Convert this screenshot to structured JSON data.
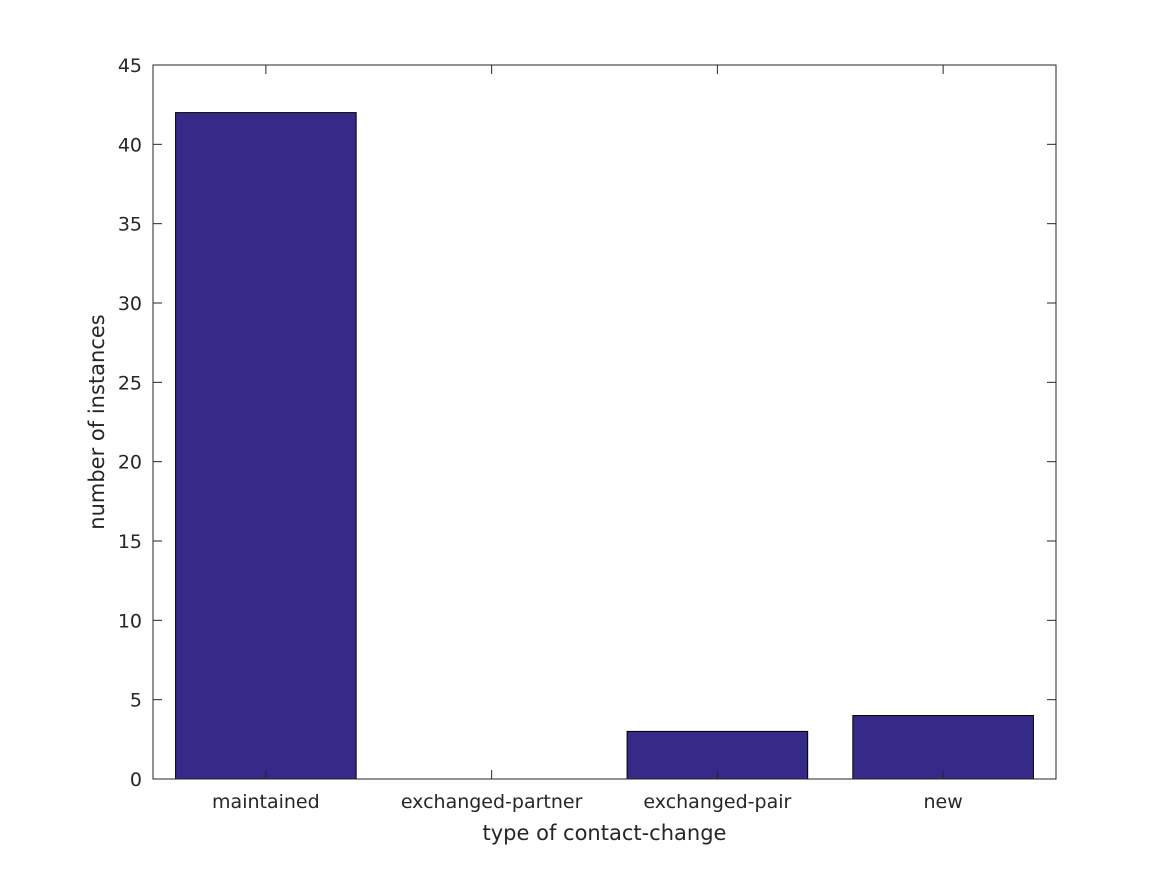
{
  "chart_data": {
    "type": "bar",
    "title": "",
    "xlabel": "type of contact-change",
    "ylabel": "number of instances",
    "categories": [
      "maintained",
      "exchanged-partner",
      "exchanged-pair",
      "new"
    ],
    "values": [
      42,
      0,
      3,
      4
    ],
    "ylim": [
      0,
      45
    ],
    "yticks": [
      0,
      5,
      10,
      15,
      20,
      25,
      30,
      35,
      40,
      45
    ],
    "grid": false,
    "bar_color": "#352a87",
    "axis_color": "#262626"
  }
}
